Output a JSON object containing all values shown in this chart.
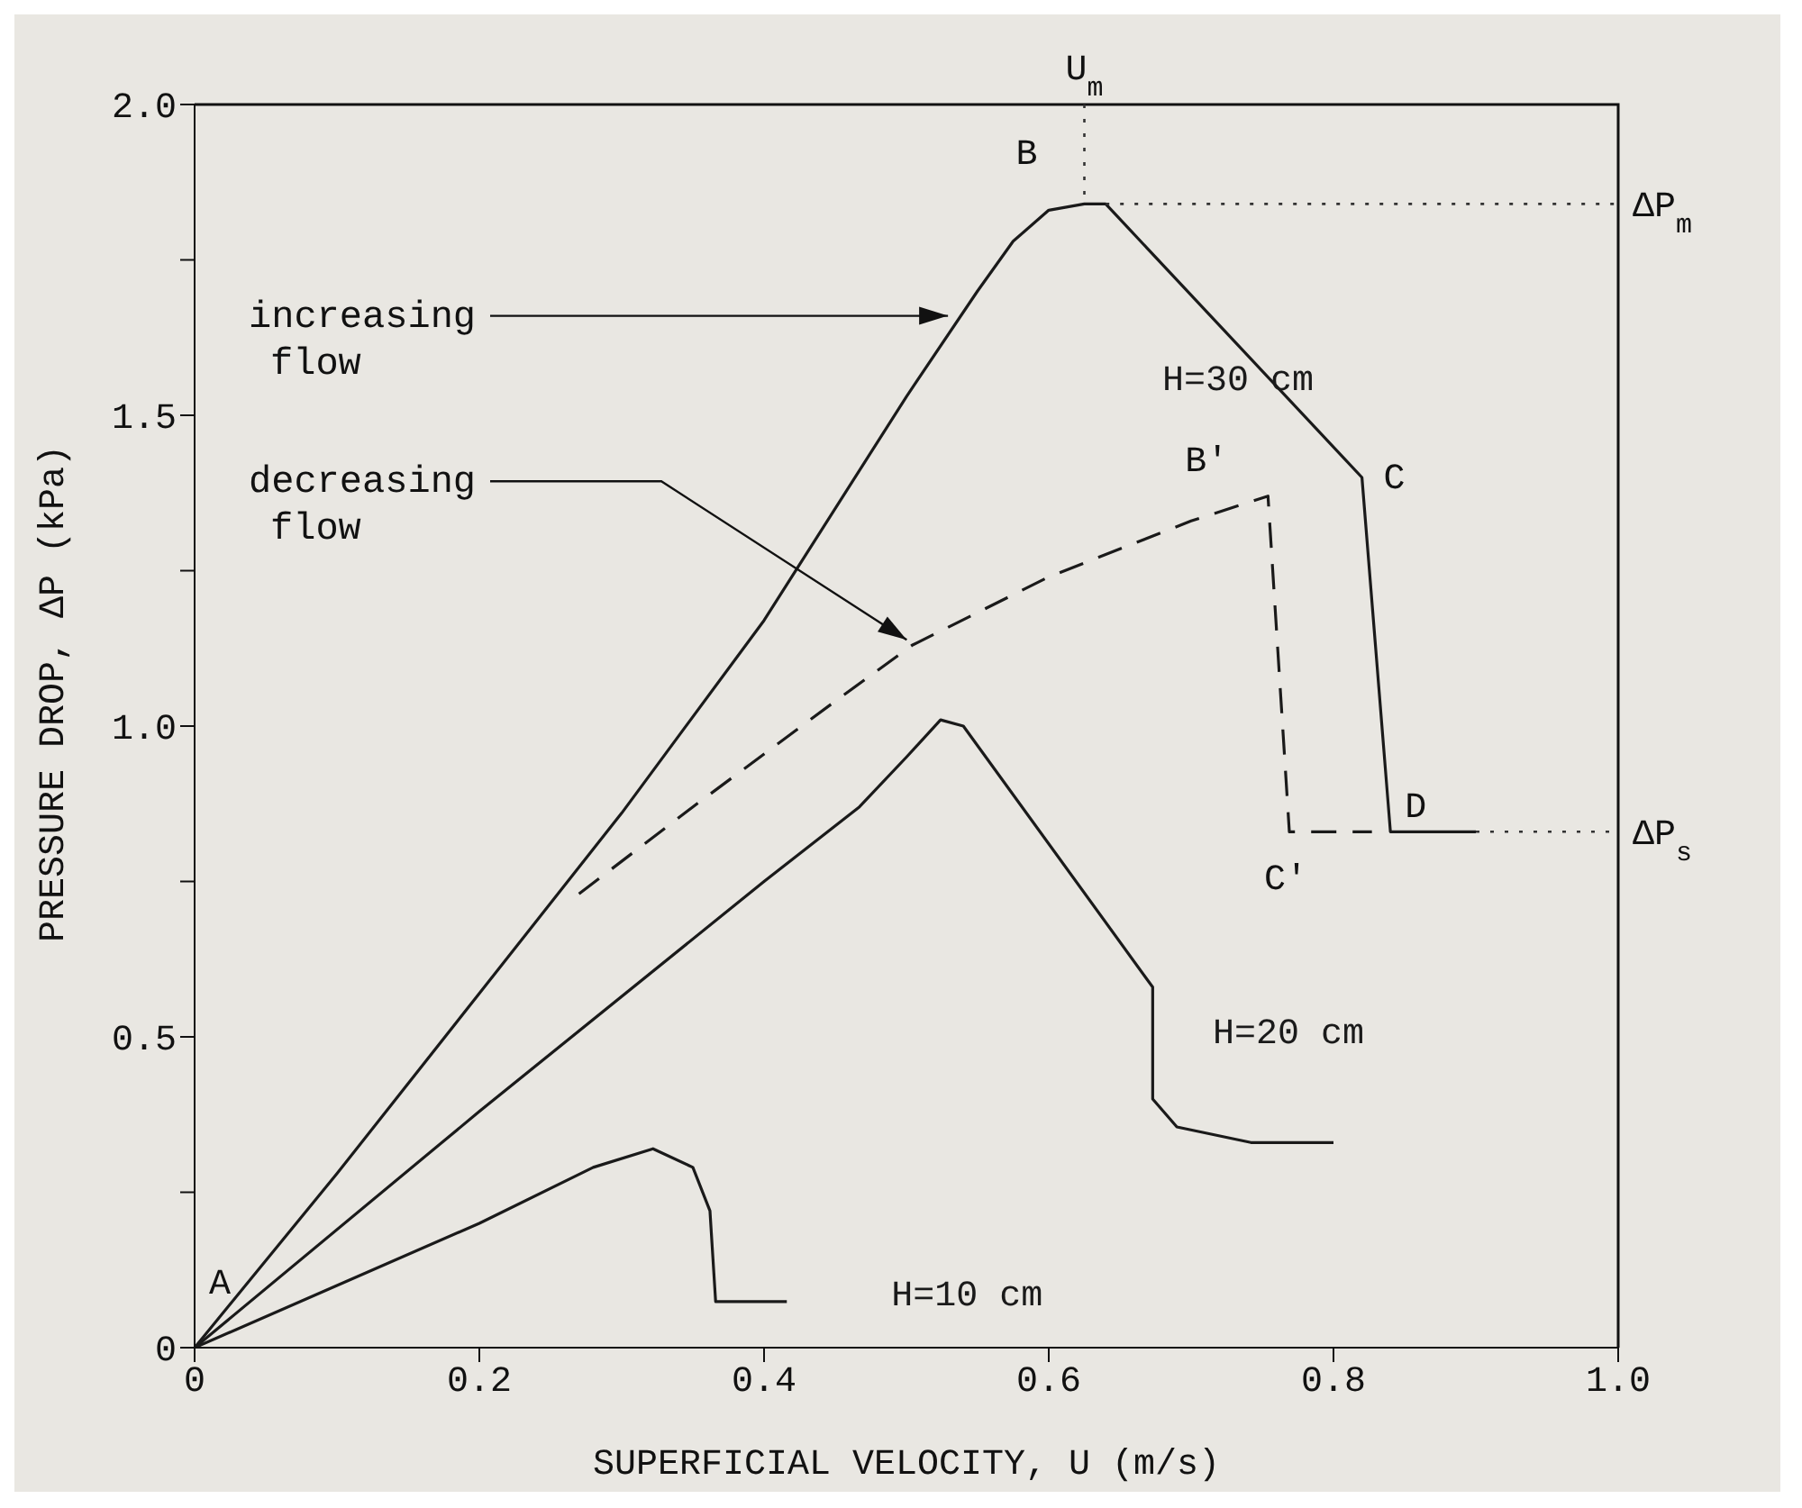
{
  "chart_data": {
    "type": "line",
    "xlabel": "SUPERFICIAL VELOCITY, U (m/s)",
    "ylabel": "PRESSURE DROP, ΔP (kPa)",
    "xlim": [
      0,
      1.0
    ],
    "ylim": [
      0,
      2.0
    ],
    "xticks": [
      0,
      0.2,
      0.4,
      0.6,
      0.8,
      {
        "value": 1.0,
        "label": "1.0"
      }
    ],
    "yticks": [
      0,
      {
        "value": 0.25,
        "label": null
      },
      0.5,
      {
        "value": 0.75,
        "label": null
      },
      {
        "value": 1.0,
        "label": "1.0"
      },
      {
        "value": 1.25,
        "label": null
      },
      1.5,
      {
        "value": 1.75,
        "label": null
      },
      {
        "value": 2.0,
        "label": "2.0"
      }
    ],
    "grid": false,
    "legend": false,
    "marker": "none",
    "series": [
      {
        "name": "H=30 cm",
        "color": "#1a1a1a",
        "line_style": "solid",
        "x": [
          0,
          0.1,
          0.2,
          0.3,
          0.4,
          0.5,
          0.55,
          0.575,
          0.6,
          0.625,
          0.64,
          0.82,
          0.84,
          0.9
        ],
        "values": [
          0,
          0.28,
          0.57,
          0.86,
          1.17,
          1.53,
          1.7,
          1.78,
          1.83,
          1.84,
          1.84,
          1.4,
          0.83,
          0.83
        ]
      },
      {
        "color": "#1a1a1a",
        "line_style": "dashed",
        "x": [
          0.27,
          0.35,
          0.45,
          0.504,
          0.6,
          0.7,
          0.754,
          0.769,
          0.827
        ],
        "values": [
          0.73,
          0.87,
          1.04,
          1.13,
          1.24,
          1.33,
          1.37,
          0.83,
          0.83
        ]
      },
      {
        "name": "H=20 cm",
        "color": "#1a1a1a",
        "line_style": "solid",
        "x": [
          0,
          0.2,
          0.4,
          0.467,
          0.5,
          0.524,
          0.54,
          0.673,
          0.673,
          0.69,
          0.742,
          0.8
        ],
        "values": [
          0,
          0.38,
          0.75,
          0.87,
          0.95,
          1.01,
          1.0,
          0.58,
          0.4,
          0.355,
          0.33,
          0.33
        ]
      },
      {
        "name": "H=10 cm",
        "color": "#1a1a1a",
        "line_style": "solid",
        "x": [
          0,
          0.1,
          0.2,
          0.28,
          0.322,
          0.35,
          0.362,
          0.366,
          0.416
        ],
        "values": [
          0,
          0.1,
          0.2,
          0.29,
          0.32,
          0.29,
          0.22,
          0.074,
          0.074
        ]
      }
    ],
    "ref_lines": [
      {
        "axis": "y",
        "value": 1.84,
        "label": "ΔP$_{m}$",
        "line_style": "dotted"
      },
      {
        "axis": "y",
        "value": 0.83,
        "label": "ΔP$_{s}$",
        "line_style": "dotted"
      },
      {
        "axis": "x",
        "value": 0.625,
        "label": "U$_{m}$",
        "line_style": "dotted"
      }
    ],
    "annotations": [
      {
        "text": "A",
        "x": 0,
        "y": 0
      },
      {
        "text": "B",
        "x": 0.625,
        "y": 1.84
      },
      {
        "text": "C",
        "x": 0.82,
        "y": 1.4
      },
      {
        "text": "D",
        "x": 0.84,
        "y": 0.83
      },
      {
        "text": "B'",
        "x": 0.754,
        "y": 1.37
      },
      {
        "text": "C'",
        "x": 0.769,
        "y": 0.83
      },
      {
        "text": "increasing flow",
        "x": 0.533,
        "y": 1.66
      },
      {
        "text": "decreasing flow",
        "x": 0.504,
        "y": 1.13
      }
    ]
  }
}
